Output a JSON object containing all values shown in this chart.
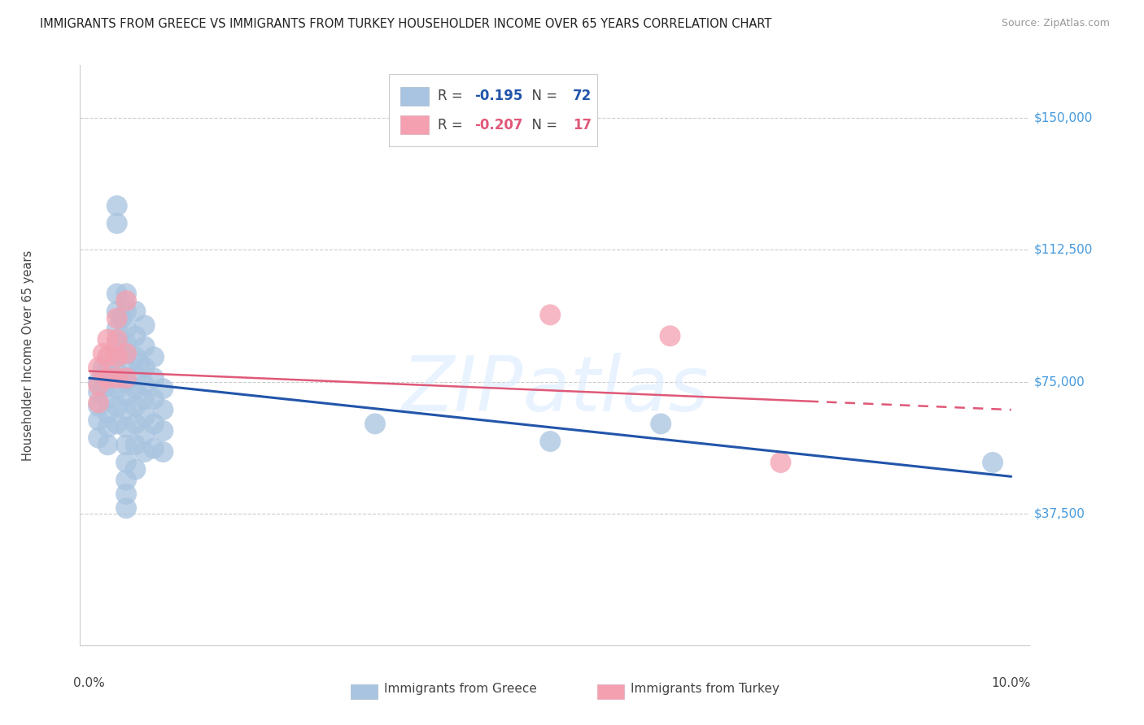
{
  "title": "IMMIGRANTS FROM GREECE VS IMMIGRANTS FROM TURKEY HOUSEHOLDER INCOME OVER 65 YEARS CORRELATION CHART",
  "source": "Source: ZipAtlas.com",
  "ylabel": "Householder Income Over 65 years",
  "xlim": [
    0.0,
    0.1
  ],
  "ylim": [
    0,
    162500
  ],
  "ytick_vals": [
    37500,
    75000,
    112500,
    150000
  ],
  "ytick_labels": [
    "$37,500",
    "$75,000",
    "$112,500",
    "$150,000"
  ],
  "legend_greece_r": "-0.195",
  "legend_greece_n": "72",
  "legend_turkey_r": "-0.207",
  "legend_turkey_n": "17",
  "watermark": "ZIPatlas",
  "greece_color": "#a8c4e0",
  "turkey_color": "#f4a0b0",
  "greece_line_color": "#2255aa",
  "turkey_line_color": "#e05878",
  "greece_line_y0": 76000,
  "greece_line_y1": 48000,
  "turkey_line_y0": 78000,
  "turkey_line_y1": 67000,
  "turkey_line_solid_x1": 0.078,
  "greece_x": [
    0.001,
    0.001,
    0.001,
    0.001,
    0.001,
    0.0015,
    0.0015,
    0.002,
    0.002,
    0.002,
    0.002,
    0.002,
    0.002,
    0.002,
    0.003,
    0.003,
    0.003,
    0.003,
    0.003,
    0.003,
    0.003,
    0.003,
    0.003,
    0.003,
    0.003,
    0.0035,
    0.004,
    0.004,
    0.004,
    0.004,
    0.004,
    0.004,
    0.004,
    0.004,
    0.004,
    0.004,
    0.004,
    0.004,
    0.004,
    0.004,
    0.004,
    0.005,
    0.005,
    0.005,
    0.005,
    0.005,
    0.005,
    0.005,
    0.005,
    0.005,
    0.0055,
    0.006,
    0.006,
    0.006,
    0.006,
    0.006,
    0.006,
    0.006,
    0.006,
    0.007,
    0.007,
    0.007,
    0.007,
    0.007,
    0.008,
    0.008,
    0.008,
    0.008,
    0.031,
    0.05,
    0.062,
    0.098
  ],
  "greece_y": [
    75000,
    72000,
    68000,
    64000,
    59000,
    79000,
    73000,
    82000,
    78000,
    74000,
    70000,
    66000,
    62000,
    57000,
    125000,
    120000,
    100000,
    95000,
    90000,
    86000,
    82000,
    78000,
    73000,
    68000,
    63000,
    93000,
    100000,
    95000,
    90000,
    86000,
    83000,
    79000,
    75000,
    71000,
    67000,
    62000,
    57000,
    52000,
    47000,
    43000,
    39000,
    95000,
    88000,
    82000,
    77000,
    73000,
    68000,
    63000,
    57000,
    50000,
    80000,
    91000,
    85000,
    79000,
    74000,
    70000,
    65000,
    60000,
    55000,
    82000,
    76000,
    70000,
    63000,
    56000,
    73000,
    67000,
    61000,
    55000,
    63000,
    58000,
    63000,
    52000
  ],
  "turkey_x": [
    0.001,
    0.001,
    0.001,
    0.0015,
    0.002,
    0.002,
    0.002,
    0.003,
    0.003,
    0.003,
    0.003,
    0.004,
    0.004,
    0.004,
    0.05,
    0.063,
    0.075
  ],
  "turkey_y": [
    79000,
    74000,
    69000,
    83000,
    87000,
    82000,
    76000,
    93000,
    87000,
    82000,
    76000,
    98000,
    83000,
    76000,
    94000,
    88000,
    52000
  ]
}
